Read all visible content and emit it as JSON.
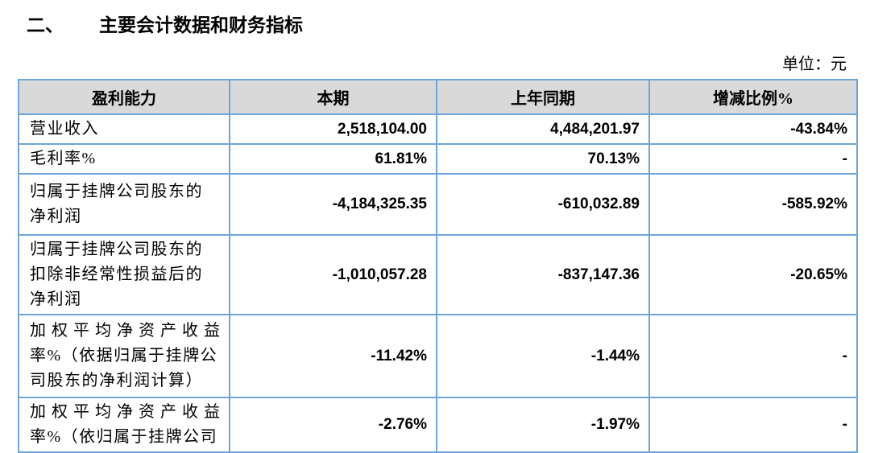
{
  "document": {
    "section_number": "二、",
    "section_title": "主要会计数据和财务指标",
    "unit_note": "单位：元"
  },
  "table": {
    "headers": [
      "盈利能力",
      "本期",
      "上年同期",
      "增减比例%"
    ],
    "rows": [
      {
        "indicator": "营业收入",
        "current_period": "2,518,104.00",
        "prior_period": "4,484,201.97",
        "change_ratio": "-43.84%"
      },
      {
        "indicator": "毛利率%",
        "current_period": "61.81%",
        "prior_period": "70.13%",
        "change_ratio": "-"
      },
      {
        "indicator": "归属于挂牌公司股东的\n净利润",
        "current_period": "-4,184,325.35",
        "prior_period": "-610,032.89",
        "change_ratio": "-585.92%"
      },
      {
        "indicator": "归属于挂牌公司股东的\n扣除非经常性损益后的\n净利润",
        "current_period": "-1,010,057.28",
        "prior_period": "-837,147.36",
        "change_ratio": "-20.65%"
      },
      {
        "indicator": "加 权 平 均 净 资 产 收 益\n率%（依据归属于挂牌公\n司股东的净利润计算）",
        "current_period": "-11.42%",
        "prior_period": "-1.44%",
        "change_ratio": "-"
      },
      {
        "indicator": "加 权 平 均 净 资 产 收 益\n率%（依归属于挂牌公司",
        "current_period": "-2.76%",
        "prior_period": "-1.97%",
        "change_ratio": "-"
      }
    ]
  },
  "colors": {
    "table_border": "#6CA6DC",
    "header_background": "#D9D9D9",
    "text": "#000000"
  }
}
